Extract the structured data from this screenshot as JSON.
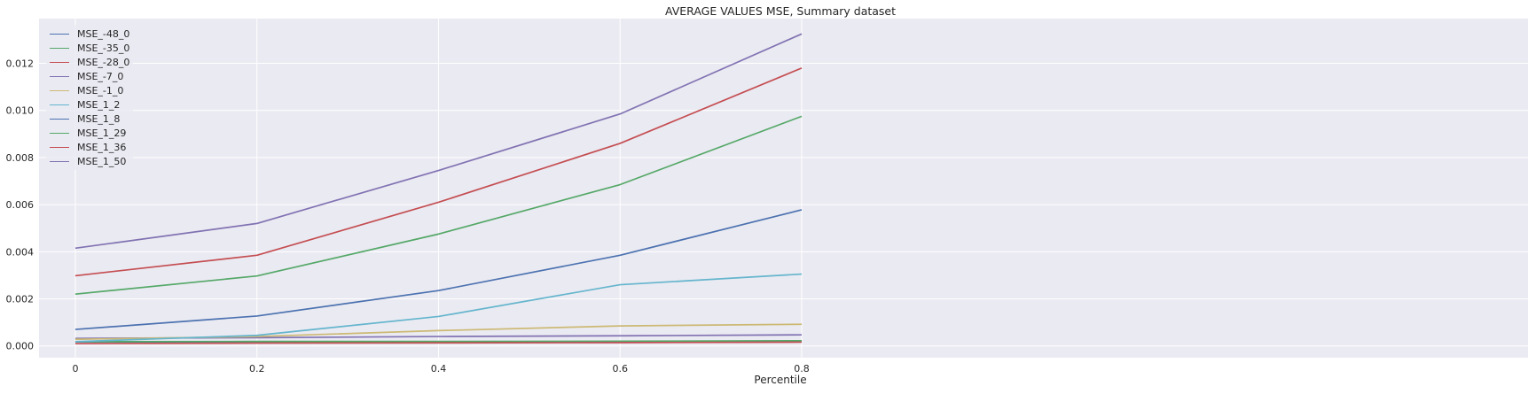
{
  "chart_data": {
    "type": "line",
    "title": "AVERAGE VALUES MSE, Summary dataset",
    "xlabel": "Percentile",
    "ylabel": "",
    "x": [
      0,
      0.2,
      0.4,
      0.6,
      0.8
    ],
    "xticks": [
      0,
      0.2,
      0.4,
      0.6,
      0.8
    ],
    "xtick_labels": [
      "0",
      "0.2",
      "0.4",
      "0.6",
      "0.8"
    ],
    "yticks": [
      0,
      0.002,
      0.004,
      0.006,
      0.008,
      0.01,
      0.012
    ],
    "ytick_labels": [
      "0.000",
      "0.002",
      "0.004",
      "0.006",
      "0.008",
      "0.010",
      "0.012"
    ],
    "xlim": [
      -0.04,
      1.6
    ],
    "ylim": [
      -0.0005,
      0.0139
    ],
    "grid": true,
    "legend_position": "upper-left",
    "background_color": "#eaeaf2",
    "series": [
      {
        "name": "MSE_-48_0",
        "color": "#4c72b0",
        "values": [
          0.00017,
          0.00017,
          0.00017,
          0.00018,
          0.0002
        ]
      },
      {
        "name": "MSE_-35_0",
        "color": "#55a868",
        "values": [
          0.00018,
          0.00019,
          0.00019,
          0.0002,
          0.00022
        ]
      },
      {
        "name": "MSE_-28_0",
        "color": "#c44e52",
        "values": [
          0.0001,
          0.00012,
          0.00013,
          0.00014,
          0.00016
        ]
      },
      {
        "name": "MSE_-7_0",
        "color": "#8172b2",
        "values": [
          0.00032,
          0.00035,
          0.0004,
          0.00043,
          0.00047
        ]
      },
      {
        "name": "MSE_-1_0",
        "color": "#ccb974",
        "values": [
          0.00028,
          0.0004,
          0.00065,
          0.00085,
          0.00092
        ]
      },
      {
        "name": "MSE_1_2",
        "color": "#64b5cd",
        "values": [
          0.00018,
          0.00045,
          0.00125,
          0.0026,
          0.00305
        ]
      },
      {
        "name": "MSE_1_8",
        "color": "#4c72b0",
        "values": [
          0.0007,
          0.00127,
          0.00235,
          0.00385,
          0.00578
        ]
      },
      {
        "name": "MSE_1_29",
        "color": "#55a868",
        "values": [
          0.0022,
          0.00297,
          0.00475,
          0.00685,
          0.00975
        ]
      },
      {
        "name": "MSE_1_36",
        "color": "#c44e52",
        "values": [
          0.00298,
          0.00385,
          0.0061,
          0.0086,
          0.0118
        ]
      },
      {
        "name": "MSE_1_50",
        "color": "#8172b2",
        "values": [
          0.00415,
          0.0052,
          0.00745,
          0.00985,
          0.01325
        ]
      }
    ]
  }
}
